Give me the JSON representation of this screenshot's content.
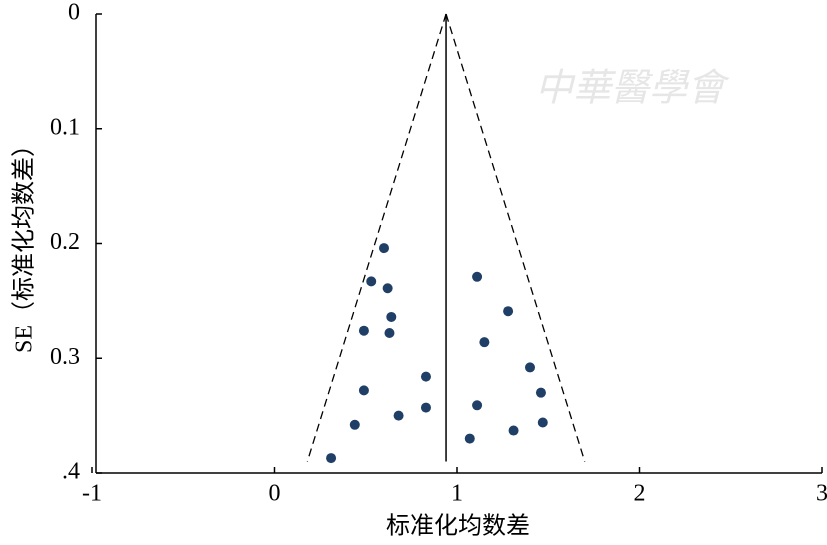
{
  "chart_data": {
    "type": "scatter",
    "x_label": "标准化均数差",
    "y_label": "SE（标准化均数差）",
    "watermark": "中華醫學會",
    "xlim": [
      -1,
      3
    ],
    "xticks": [
      -1,
      0,
      1,
      2,
      3
    ],
    "ylim": [
      0,
      0.4
    ],
    "y_inverted": true,
    "yticks": [
      0,
      0.1,
      0.2,
      0.3,
      {
        "value": 0.4,
        "label": ".4"
      }
    ],
    "color": "#1f3f66",
    "x": [
      0.6,
      0.53,
      0.62,
      0.64,
      0.49,
      0.63,
      1.11,
      1.28,
      1.15,
      1.4,
      0.83,
      0.49,
      1.46,
      0.83,
      1.11,
      0.68,
      0.44,
      1.47,
      1.31,
      1.07,
      0.31
    ],
    "values": [
      0.204,
      0.233,
      0.239,
      0.264,
      0.276,
      0.278,
      0.229,
      0.259,
      0.286,
      0.308,
      0.316,
      0.328,
      0.33,
      0.343,
      0.341,
      0.35,
      0.358,
      0.356,
      0.363,
      0.37,
      0.387
    ],
    "summary_line": {
      "x": 0.94,
      "y_end": 0.39
    },
    "funnel": {
      "apex": [
        0.94,
        0
      ],
      "left": [
        0.18,
        0.39
      ],
      "right": [
        1.7,
        0.39
      ]
    }
  }
}
